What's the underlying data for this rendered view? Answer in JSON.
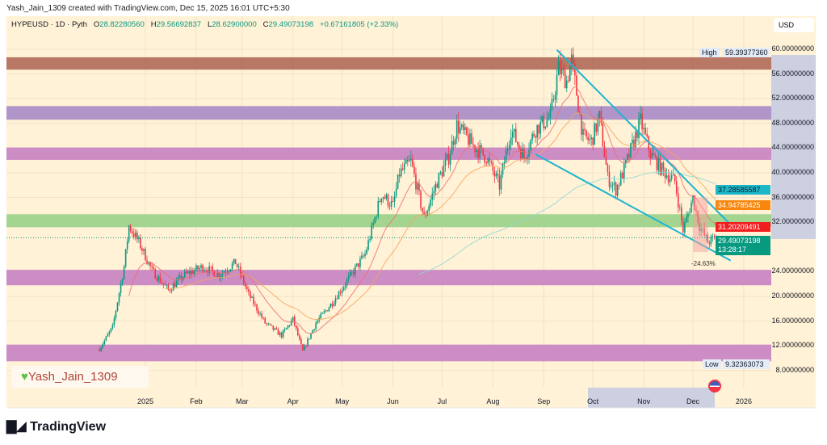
{
  "header": {
    "caption": "Yash_Jain_1309 created with TradingView.com, Dec 15, 2025 16:01 UTC+5:30"
  },
  "legend": {
    "symbol": "HYPEUSD · 1D · Pyth",
    "o_label": "O",
    "o": "28.82280560",
    "h_label": "H",
    "h": "29.56692837",
    "l_label": "L",
    "l": "28.62900000",
    "c_label": "C",
    "c": "29.49073198",
    "change": "+0.67161805 (+2.33%)"
  },
  "currency": "USD",
  "watermark": "Yash_Jain_1309",
  "footer_logo": "TradingView",
  "measurement_label": "-24.63%",
  "chart_data": {
    "type": "candlestick",
    "ylim": [
      8,
      60
    ],
    "y_ticks": [
      "60.00000000",
      "56.00000000",
      "52.00000000",
      "48.00000000",
      "44.00000000",
      "40.00000000",
      "36.00000000",
      "32.00000000",
      "24.00000000",
      "20.00000000",
      "16.00000000",
      "12.00000000",
      "8.00000000"
    ],
    "y_tick_values": [
      60,
      56,
      52,
      48,
      44,
      40,
      36,
      32,
      24,
      20,
      16,
      12,
      8
    ],
    "x_ticks": [
      {
        "label": "2025",
        "date": "2025-01-01"
      },
      {
        "label": "Feb",
        "date": "2025-02-01"
      },
      {
        "label": "Mar",
        "date": "2025-03-01"
      },
      {
        "label": "Apr",
        "date": "2025-04-01"
      },
      {
        "label": "May",
        "date": "2025-05-01"
      },
      {
        "label": "Jun",
        "date": "2025-06-01"
      },
      {
        "label": "Jul",
        "date": "2025-07-01"
      },
      {
        "label": "Aug",
        "date": "2025-08-01"
      },
      {
        "label": "Sep",
        "date": "2025-09-01"
      },
      {
        "label": "Oct",
        "date": "2025-10-01"
      },
      {
        "label": "Nov",
        "date": "2025-11-01"
      },
      {
        "label": "Dec",
        "date": "2025-12-01"
      },
      {
        "label": "2026",
        "date": "2026-01-01"
      }
    ],
    "close_path": [
      [
        "2024-12-04",
        11.5
      ],
      [
        "2024-12-12",
        15
      ],
      [
        "2024-12-19",
        24.8
      ],
      [
        "2024-12-22",
        31.4
      ],
      [
        "2024-12-28",
        28.8
      ],
      [
        "2025-01-05",
        24.2
      ],
      [
        "2025-01-15",
        21
      ],
      [
        "2025-01-25",
        23.5
      ],
      [
        "2025-02-05",
        24.8
      ],
      [
        "2025-02-15",
        23.5
      ],
      [
        "2025-02-25",
        25.5
      ],
      [
        "2025-03-05",
        20.3
      ],
      [
        "2025-03-15",
        15.7
      ],
      [
        "2025-03-25",
        13.7
      ],
      [
        "2025-04-01",
        16.3
      ],
      [
        "2025-04-07",
        11.1
      ],
      [
        "2025-04-15",
        15.7
      ],
      [
        "2025-04-25",
        19
      ],
      [
        "2025-05-05",
        22.9
      ],
      [
        "2025-05-15",
        26.8
      ],
      [
        "2025-05-25",
        36.6
      ],
      [
        "2025-06-01",
        34.6
      ],
      [
        "2025-06-05",
        39.9
      ],
      [
        "2025-06-12",
        41.8
      ],
      [
        "2025-06-20",
        32.7
      ],
      [
        "2025-06-28",
        38.6
      ],
      [
        "2025-07-05",
        42.5
      ],
      [
        "2025-07-10",
        47.7
      ],
      [
        "2025-07-20",
        44.4
      ],
      [
        "2025-07-28",
        42.5
      ],
      [
        "2025-08-05",
        37.9
      ],
      [
        "2025-08-12",
        47.1
      ],
      [
        "2025-08-20",
        42.5
      ],
      [
        "2025-08-27",
        47.1
      ],
      [
        "2025-09-05",
        49
      ],
      [
        "2025-09-10",
        56.9
      ],
      [
        "2025-09-15",
        54.9
      ],
      [
        "2025-09-18",
        58.2
      ],
      [
        "2025-09-25",
        45.8
      ],
      [
        "2025-09-30",
        45.1
      ],
      [
        "2025-10-05",
        49
      ],
      [
        "2025-10-10",
        39.2
      ],
      [
        "2025-10-15",
        37.3
      ],
      [
        "2025-10-20",
        40.5
      ],
      [
        "2025-10-25",
        44.4
      ],
      [
        "2025-10-30",
        48.4
      ],
      [
        "2025-11-05",
        43.1
      ],
      [
        "2025-11-12",
        40.5
      ],
      [
        "2025-11-20",
        38.6
      ],
      [
        "2025-11-25",
        30.7
      ],
      [
        "2025-12-01",
        36
      ],
      [
        "2025-12-05",
        31.4
      ],
      [
        "2025-12-10",
        28.8
      ],
      [
        "2025-12-15",
        29.49
      ]
    ],
    "price_labels": {
      "high": "59.39377360",
      "high_text": "High",
      "low": "9.32363073",
      "low_text": "Low",
      "ma_teal": "37.28585587",
      "ma_orange": "34.94785425",
      "ma_red": "31.20209491",
      "last": "29.49073198",
      "countdown": "13:28:17"
    },
    "zones": [
      {
        "from": 56.7,
        "to": 58.7,
        "color": "#b5705f"
      },
      {
        "from": 48.6,
        "to": 50.8,
        "color": "#ad8fc7"
      },
      {
        "from": 42.1,
        "to": 44.1,
        "color": "#c987c3"
      },
      {
        "from": 31.2,
        "to": 33.3,
        "color": "#9fd38c"
      },
      {
        "from": 21.8,
        "to": 24.3,
        "color": "#c987c3"
      },
      {
        "from": 9.5,
        "to": 12.2,
        "color": "#c987c3"
      }
    ],
    "trendlines": [
      {
        "from": [
          "2025-09-09",
          59.9
        ],
        "to": [
          "2025-12-24",
          31.6
        ]
      },
      {
        "from": [
          "2025-08-27",
          43.0
        ],
        "to": [
          "2025-12-24",
          25.8
        ]
      }
    ],
    "measurement": {
      "from": [
        "2025-12-01",
        36
      ],
      "to": [
        "2025-12-10",
        27.2
      ]
    },
    "colors": {
      "up": "#089981",
      "down": "#f23645",
      "bg": "#fff2d6",
      "trend": "#1fb5d1",
      "ma_red": "#f06f6f",
      "ma_orange": "#f7a35a",
      "ma_teal": "#8fd9d1"
    }
  }
}
